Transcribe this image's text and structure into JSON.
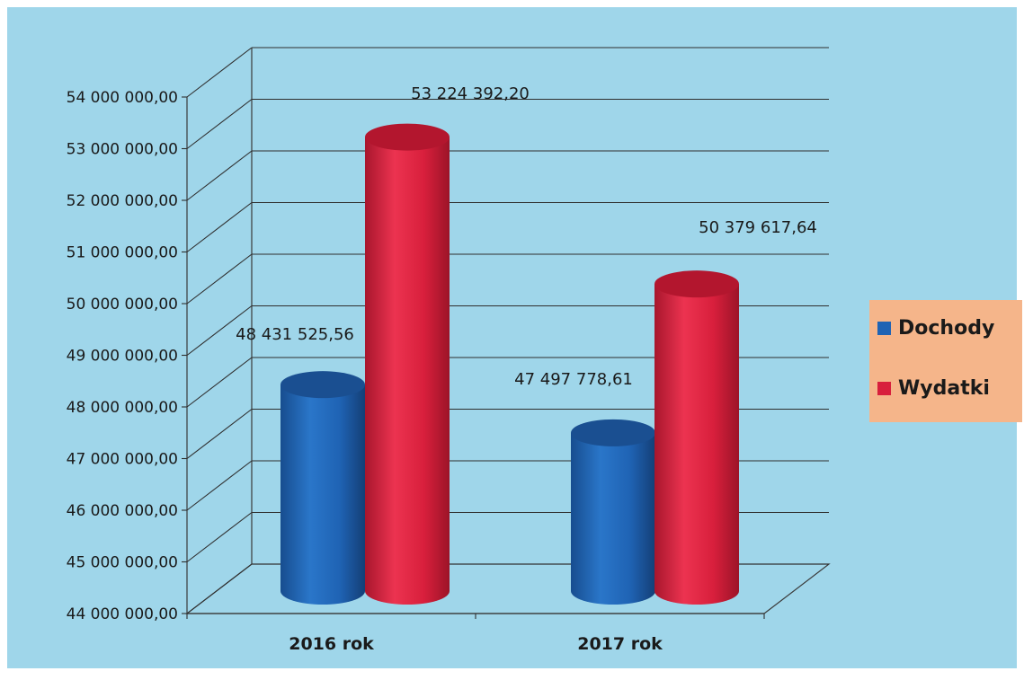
{
  "chart_data": {
    "type": "bar",
    "style": "3d-cylinder",
    "categories": [
      "2016 rok",
      "2017 rok"
    ],
    "series": [
      {
        "name": "Dochody",
        "color": "#1f63b4",
        "values": [
          48431525.56,
          47497778.61
        ],
        "labels": [
          "48 431 525,56",
          "47 497 778,61"
        ]
      },
      {
        "name": "Wydatki",
        "color": "#d81f3c",
        "values": [
          53224392.2,
          50379617.64
        ],
        "labels": [
          "53 224 392,20",
          "50 379 617,64"
        ]
      }
    ],
    "ylim": [
      44000000,
      54000000
    ],
    "yticks": [
      44000000,
      45000000,
      46000000,
      47000000,
      48000000,
      49000000,
      50000000,
      51000000,
      52000000,
      53000000,
      54000000
    ],
    "ytick_labels": [
      "44 000 000,00",
      "45 000 000,00",
      "46 000 000,00",
      "47 000 000,00",
      "48 000 000,00",
      "49 000 000,00",
      "50 000 000,00",
      "51 000 000,00",
      "52 000 000,00",
      "53 000 000,00",
      "54 000 000,00"
    ],
    "title": "",
    "xlabel": "",
    "ylabel": "",
    "grid": true,
    "legend_position": "right",
    "background_color": "#9fd6ea",
    "legend_background": "#f5b58a"
  }
}
